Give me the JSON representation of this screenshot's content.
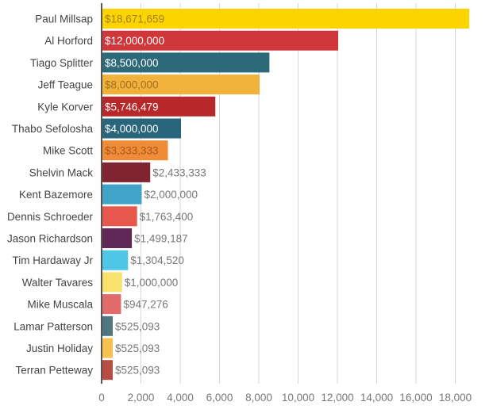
{
  "chart_data": {
    "type": "bar",
    "orientation": "horizontal",
    "title": "",
    "xlabel": "",
    "ylabel": "",
    "xlim": [
      0,
      20000
    ],
    "x_ticks": [
      0,
      2000,
      4000,
      6000,
      8000,
      10000,
      12000,
      14000,
      16000,
      18000
    ],
    "x_tick_labels": [
      "0",
      "2,000",
      "4,000",
      "6,000",
      "8,000",
      "10,000",
      "12,000",
      "14,000",
      "16,000",
      "18,000"
    ],
    "grid": "vertical",
    "categories": [
      "Paul Millsap",
      "Al Horford",
      "Tiago Splitter",
      "Jeff Teague",
      "Kyle Korver",
      "Thabo Sefolosha",
      "Mike Scott",
      "Shelvin Mack",
      "Kent Bazemore",
      "Dennis Schroeder",
      "Jason Richardson",
      "Tim Hardaway Jr",
      "Walter Tavares",
      "Mike Muscala",
      "Lamar Patterson",
      "Justin Holiday",
      "Terran Petteway"
    ],
    "values": [
      18671.659,
      12000,
      8500,
      8000,
      5746.479,
      4000,
      3333.333,
      2433.333,
      2000,
      1763.4,
      1499.187,
      1304.52,
      1000,
      947.276,
      525.093,
      525.093,
      525.093
    ],
    "value_labels": [
      "$18,671,659",
      "$12,000,000",
      "$8,500,000",
      "$8,000,000",
      "$5,746,479",
      "$4,000,000",
      "$3,333,333",
      "$2,433,333",
      "$2,000,000",
      "$1,763,400",
      "$1,499,187",
      "$1,304,520",
      "$1,000,000",
      "$947,276",
      "$525,093",
      "$525,093",
      "$525,093"
    ],
    "colors": [
      "#fdd300",
      "#cf373b",
      "#2c6a7a",
      "#f1b23c",
      "#b6282a",
      "#2a667b",
      "#ef8c38",
      "#7f2430",
      "#41a3c8",
      "#e8574c",
      "#5f2856",
      "#4fc6e6",
      "#f9e16d",
      "#e06b6a",
      "#4f7680",
      "#f6c14f",
      "#b84c43"
    ],
    "label_colors": [
      "#a08220",
      "#ffffff",
      "#ffffff",
      "#a66f20",
      "#ffffff",
      "#ffffff",
      "#a8561c",
      "#777777",
      "#777777",
      "#777777",
      "#777777",
      "#777777",
      "#777777",
      "#777777",
      "#777777",
      "#777777",
      "#777777"
    ]
  }
}
